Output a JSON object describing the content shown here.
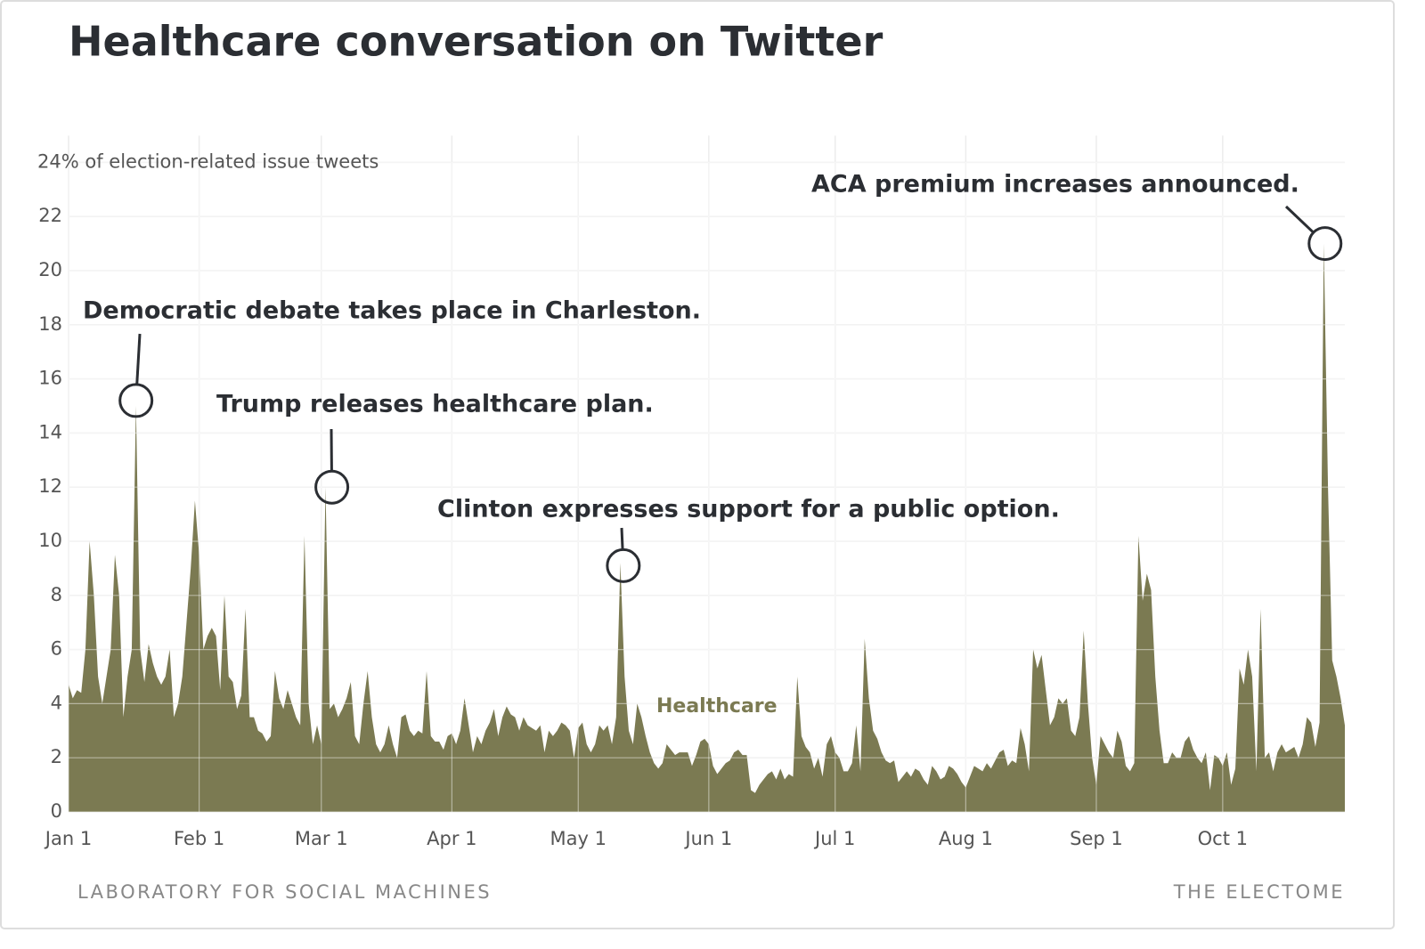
{
  "chart_data": {
    "type": "area",
    "title": "Healthcare conversation on Twitter",
    "source": "LABORATORY FOR SOCIAL MACHINES",
    "credit": "THE ELECTOME",
    "x": [
      0,
      1,
      2,
      3,
      4,
      5,
      6,
      7,
      8,
      9,
      10,
      11,
      12,
      13,
      14,
      15,
      16,
      17,
      18,
      19,
      20,
      21,
      22,
      23,
      24,
      25,
      26,
      27,
      28,
      29,
      30,
      31,
      32,
      33,
      34,
      35,
      36,
      37,
      38,
      39,
      40,
      41,
      42,
      43,
      44,
      45,
      46,
      47,
      48,
      49,
      50,
      51,
      52,
      53,
      54,
      55,
      56,
      57,
      58,
      59,
      60,
      61,
      62,
      63,
      64,
      65,
      66,
      67,
      68,
      69,
      70,
      71,
      72,
      73,
      74,
      75,
      76,
      77,
      78,
      79,
      80,
      81,
      82,
      83,
      84,
      85,
      86,
      87,
      88,
      89,
      90,
      91,
      92,
      93,
      94,
      95,
      96,
      97,
      98,
      99,
      100,
      101,
      102,
      103,
      104,
      105,
      106,
      107,
      108,
      109,
      110,
      111,
      112,
      113,
      114,
      115,
      116,
      117,
      118,
      119,
      120,
      121,
      122,
      123,
      124,
      125,
      126,
      127,
      128,
      129,
      130,
      131,
      132,
      133,
      134,
      135,
      136,
      137,
      138,
      139,
      140,
      141,
      142,
      143,
      144,
      145,
      146,
      147,
      148,
      149,
      150,
      151,
      152,
      153,
      154,
      155,
      156,
      157,
      158,
      159,
      160,
      161,
      162,
      163,
      164,
      165,
      166,
      167,
      168,
      169,
      170,
      171,
      172,
      173,
      174,
      175,
      176,
      177,
      178,
      179,
      180,
      181,
      182,
      183,
      184,
      185,
      186,
      187,
      188,
      189,
      190,
      191,
      192,
      193,
      194,
      195,
      196,
      197,
      198,
      199,
      200,
      201,
      202,
      203,
      204,
      205,
      206,
      207,
      208,
      209,
      210,
      211,
      212,
      213,
      214,
      215,
      216,
      217,
      218,
      219,
      220,
      221,
      222,
      223,
      224,
      225,
      226,
      227,
      228,
      229,
      230,
      231,
      232,
      233,
      234,
      235,
      236,
      237,
      238,
      239,
      240,
      241,
      242,
      243,
      244,
      245,
      246,
      247,
      248,
      249,
      250,
      251,
      252,
      253,
      254,
      255,
      256,
      257,
      258,
      259,
      260,
      261,
      262,
      263,
      264,
      265,
      266,
      267,
      268,
      269,
      270,
      271,
      272,
      273,
      274,
      275,
      276,
      277,
      278,
      279,
      280,
      281,
      282,
      283,
      284,
      285,
      286,
      287,
      288,
      289,
      290,
      291,
      292,
      293,
      294,
      295,
      296,
      297,
      298,
      299,
      300,
      301,
      302,
      303
    ],
    "series": [
      {
        "name": "Healthcare",
        "color": "#7b7a52",
        "values": [
          4.7,
          4.2,
          4.5,
          4.4,
          6,
          10,
          8,
          5,
          4,
          5,
          6,
          9.5,
          8,
          3.5,
          5,
          6,
          15,
          6,
          4.8,
          6.2,
          5.5,
          5,
          4.7,
          5,
          6,
          3.5,
          4,
          5,
          7,
          9,
          11.5,
          9.5,
          6,
          6.5,
          6.8,
          6.5,
          4.5,
          8,
          5,
          4.8,
          3.8,
          4.3,
          7.5,
          3.5,
          3.5,
          3,
          2.9,
          2.6,
          2.8,
          5.2,
          4.2,
          3.8,
          4.5,
          4,
          3.5,
          3.2,
          10.2,
          4,
          2.5,
          3.2,
          2.5,
          12,
          3.8,
          4,
          3.5,
          3.8,
          4.2,
          4.8,
          2.8,
          2.5,
          4,
          5.2,
          3.5,
          2.5,
          2.2,
          2.5,
          3.2,
          2.5,
          2,
          3.5,
          3.6,
          3,
          2.8,
          3,
          2.9,
          5.2,
          2.8,
          2.6,
          2.6,
          2.3,
          2.8,
          2.9,
          2.5,
          3,
          4.2,
          3.2,
          2.2,
          2.8,
          2.5,
          3,
          3.3,
          3.8,
          2.8,
          3.5,
          3.9,
          3.6,
          3.5,
          3,
          3.5,
          3.2,
          3.1,
          3,
          3.2,
          2.2,
          3,
          2.8,
          3,
          3.3,
          3.2,
          3,
          2,
          3.1,
          3.3,
          2.5,
          2.2,
          2.5,
          3.2,
          3,
          3.2,
          2.5,
          3.5,
          9.2,
          5,
          3,
          2.5,
          4,
          3.5,
          2.8,
          2.2,
          1.8,
          1.6,
          1.8,
          2.5,
          2.3,
          2.1,
          2.2,
          2.2,
          2.2,
          1.7,
          2.1,
          2.6,
          2.7,
          2.5,
          1.7,
          1.4,
          1.6,
          1.8,
          1.9,
          2.2,
          2.3,
          2.1,
          2.1,
          0.8,
          0.7,
          1,
          1.2,
          1.4,
          1.5,
          1.2,
          1.6,
          1.2,
          1.4,
          1.3,
          5,
          2.8,
          2.4,
          2.2,
          1.6,
          2,
          1.3,
          2.5,
          2.8,
          2.2,
          2,
          1.5,
          1.5,
          1.8,
          3.2,
          1.5,
          6.4,
          4.2,
          3,
          2.7,
          2.2,
          1.9,
          1.8,
          1.9,
          1.1,
          1.3,
          1.5,
          1.3,
          1.6,
          1.5,
          1.2,
          1,
          1.7,
          1.5,
          1.2,
          1.3,
          1.7,
          1.6,
          1.4,
          1.1,
          0.9,
          1.3,
          1.7,
          1.6,
          1.5,
          1.8,
          1.6,
          1.9,
          2.2,
          2.3,
          1.7,
          1.9,
          1.8,
          3.1,
          2.5,
          1.5,
          6,
          5.3,
          5.8,
          4.5,
          3.2,
          3.5,
          4.2,
          4,
          4.2,
          3,
          2.8,
          3.5,
          6.7,
          4,
          2,
          1,
          2.8,
          2.5,
          2.2,
          2,
          3,
          2.6,
          1.7,
          1.5,
          1.8,
          10.2,
          7.8,
          8.8,
          8.2,
          5,
          3,
          1.8,
          1.8,
          2.2,
          2,
          2,
          2.6,
          2.8,
          2.3,
          2,
          1.8,
          2.2,
          0.8,
          2.1,
          2,
          1.7,
          2.2,
          1,
          1.6,
          5.3,
          4.7,
          6,
          5,
          1.5,
          7.5,
          2,
          2.2,
          1.5,
          2.2,
          2.5,
          2.2,
          2.3,
          2.4,
          2,
          2.5,
          3.5,
          3.3,
          2.4,
          3.3,
          21,
          12,
          5.6,
          5,
          4.2,
          3.2
        ]
      }
    ],
    "xlim": [
      0,
      303
    ],
    "xticks": [
      {
        "value": 0,
        "label": "Jan 1"
      },
      {
        "value": 31,
        "label": "Feb 1"
      },
      {
        "value": 60,
        "label": "Mar 1"
      },
      {
        "value": 91,
        "label": "Apr 1"
      },
      {
        "value": 121,
        "label": "May 1"
      },
      {
        "value": 152,
        "label": "Jun 1"
      },
      {
        "value": 182,
        "label": "Jul 1"
      },
      {
        "value": 213,
        "label": "Aug 1"
      },
      {
        "value": 244,
        "label": "Sep 1"
      },
      {
        "value": 274,
        "label": "Oct 1"
      }
    ],
    "ylim": [
      0,
      24
    ],
    "yticks": [
      0,
      2,
      4,
      6,
      8,
      10,
      12,
      14,
      16,
      18,
      20,
      22,
      {
        "value": 24,
        "label": "24% of election-related issue tweets"
      }
    ],
    "grid": true,
    "annotations": [
      {
        "text": "Democratic debate takes place in Charleston.",
        "x": 16,
        "y": 15.2
      },
      {
        "text": "Trump releases healthcare plan.",
        "x": 62.5,
        "y": 12
      },
      {
        "text": "Clinton expresses support for a public option.",
        "x": 131.7,
        "y": 9.1
      },
      {
        "text": "ACA premium increases announced.",
        "x": 298.3,
        "y": 21
      }
    ]
  }
}
